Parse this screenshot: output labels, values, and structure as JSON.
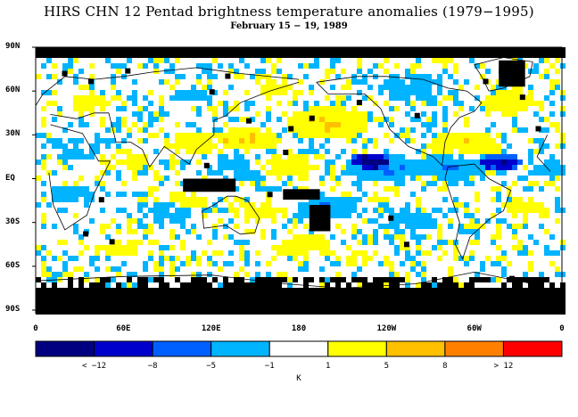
{
  "title": "HIRS CHN 12 Pentad brightness temperature anomalies (1979−1995)",
  "subtitle": "February 15 − 19, 1989",
  "y_ticks": [
    "90N",
    "60N",
    "30N",
    "EQ",
    "30S",
    "60S",
    "90S"
  ],
  "x_ticks": [
    "0",
    "60E",
    "120E",
    "180",
    "120W",
    "60W",
    "0"
  ],
  "colorbar": {
    "colors": [
      "#000080",
      "#0000cc",
      "#0060ff",
      "#00b4ff",
      "#ffffff",
      "#ffff00",
      "#ffc000",
      "#ff8000",
      "#ff0000"
    ],
    "labels": [
      "< −12",
      "−8",
      "−5",
      "−1",
      "1",
      "5",
      "8",
      "> 12"
    ],
    "unit": "K"
  },
  "colors": {
    "missing": "#000000",
    "coast": "#000000"
  }
}
